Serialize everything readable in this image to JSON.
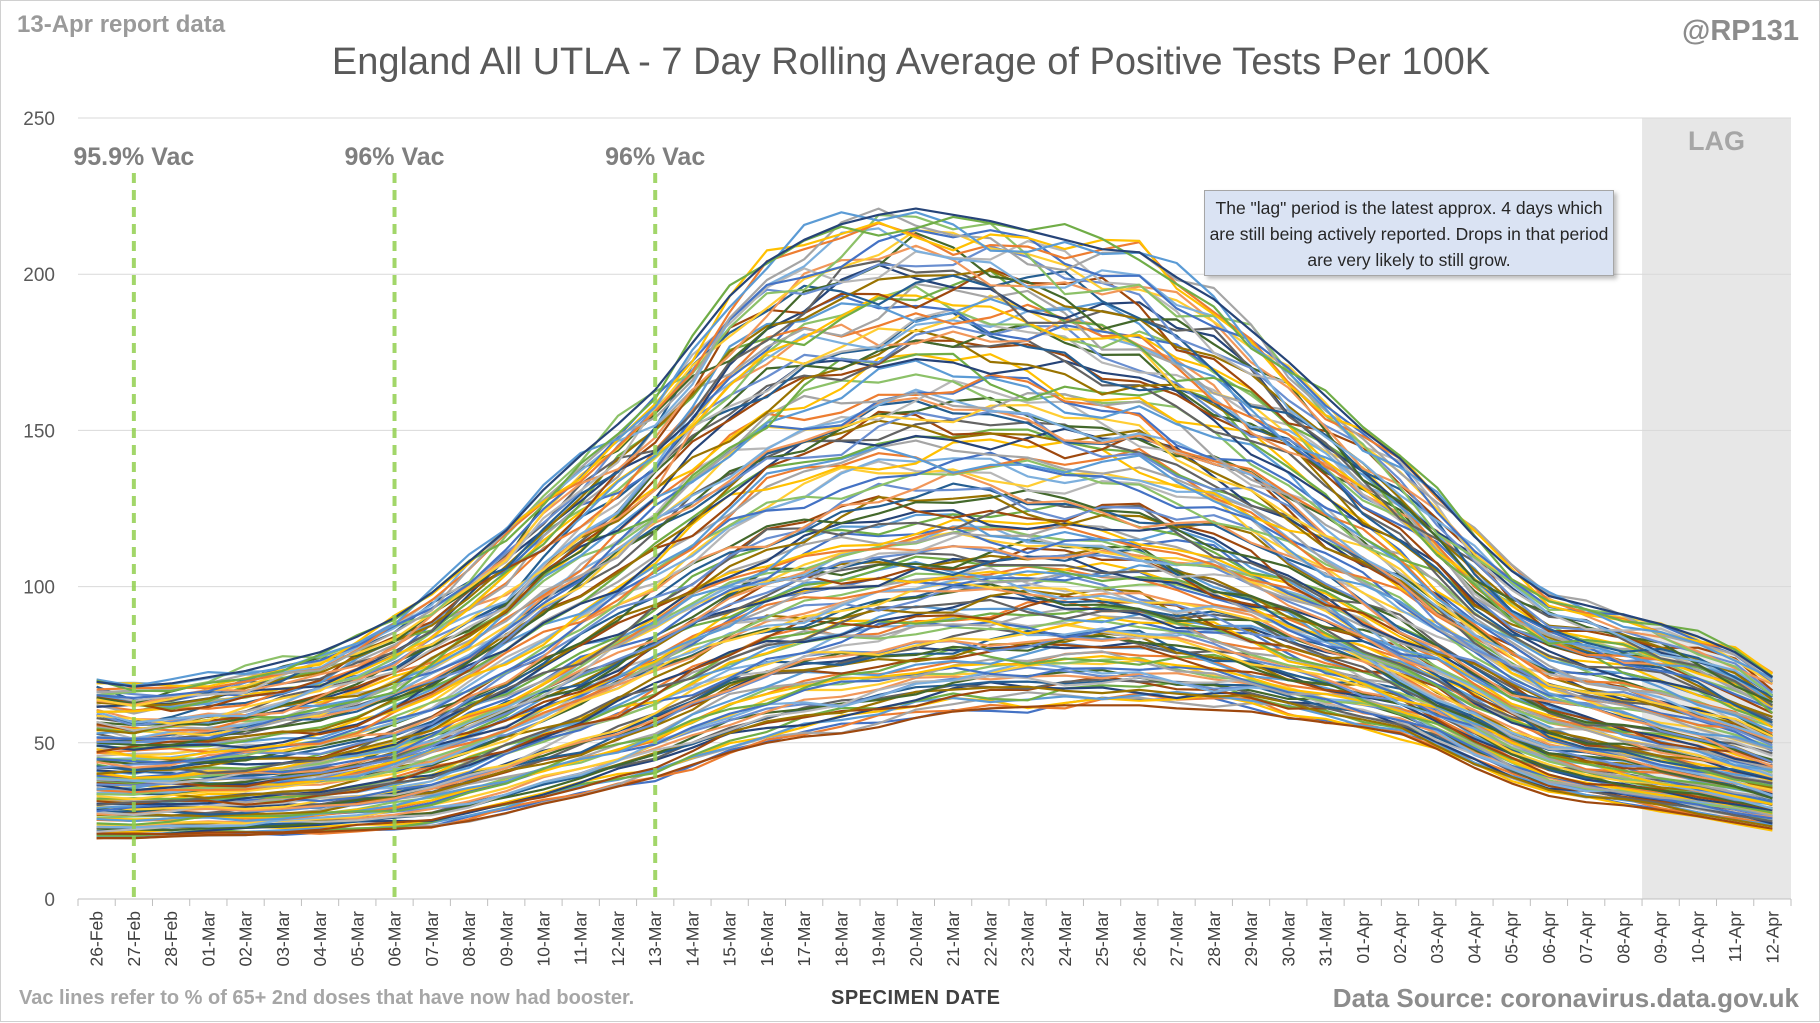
{
  "report_date": "13-Apr report data",
  "handle": "@RP131",
  "footnote": "Vac lines refer to % of 65+ 2nd doses that have now had booster.",
  "source": "Data Source: coronavirus.data.gov.uk",
  "callout": "The \"lag\" period is the latest approx. 4 days which are still being actively reported. Drops in that period are very likely to still grow.",
  "colors": {
    "grid": "#d9d9d9",
    "vac_line": "#92d050",
    "lag_shade": "#e7e7e7",
    "palette": [
      "#4472c4",
      "#ed7d31",
      "#a5a5a5",
      "#ffc000",
      "#5b9bd5",
      "#70ad47",
      "#264478",
      "#9e480e",
      "#636363",
      "#997300",
      "#255e91",
      "#43682b",
      "#698ed0",
      "#f1975a",
      "#b7b7b7",
      "#ffcd33",
      "#7cafdd",
      "#8cc168"
    ]
  },
  "chart_data": {
    "type": "line",
    "title": "England All UTLA - 7 Day Rolling Average of Positive Tests Per 100K",
    "xlabel": "SPECIMEN DATE",
    "ylabel": "",
    "ylim": [
      0,
      250
    ],
    "yticks": [
      0,
      50,
      100,
      150,
      200,
      250
    ],
    "grid": true,
    "legend": "none",
    "x": [
      "26-Feb",
      "27-Feb",
      "28-Feb",
      "01-Mar",
      "02-Mar",
      "03-Mar",
      "04-Mar",
      "05-Mar",
      "06-Mar",
      "07-Mar",
      "08-Mar",
      "09-Mar",
      "10-Mar",
      "11-Mar",
      "12-Mar",
      "13-Mar",
      "14-Mar",
      "15-Mar",
      "16-Mar",
      "17-Mar",
      "18-Mar",
      "19-Mar",
      "20-Mar",
      "21-Mar",
      "22-Mar",
      "23-Mar",
      "24-Mar",
      "25-Mar",
      "26-Mar",
      "27-Mar",
      "28-Mar",
      "29-Mar",
      "30-Mar",
      "31-Mar",
      "01-Apr",
      "02-Apr",
      "03-Apr",
      "04-Apr",
      "05-Apr",
      "06-Apr",
      "07-Apr",
      "08-Apr",
      "09-Apr",
      "10-Apr",
      "11-Apr",
      "12-Apr"
    ],
    "vac_markers": [
      {
        "date": "27-Feb",
        "label": "95.9% Vac"
      },
      {
        "date": "06-Mar",
        "label": "96% Vac"
      },
      {
        "date": "13-Mar",
        "label": "96% Vac"
      }
    ],
    "lag": {
      "from": "09-Apr",
      "to": "12-Apr",
      "label": "LAG"
    },
    "series_count": 150,
    "envelope": {
      "max": [
        69.5,
        68.0,
        69.0,
        71.0,
        73.0,
        76.0,
        79.0,
        84.0,
        90.0,
        98.0,
        108.0,
        118.0,
        131.0,
        142.0,
        152.0,
        163.0,
        178.0,
        193.0,
        204.0,
        211.0,
        216.0,
        219.0,
        221.0,
        219.0,
        217.0,
        214.0,
        211.0,
        208.0,
        207.0,
        199.0,
        192.0,
        182.0,
        172.0,
        161.0,
        150.0,
        141.0,
        129.0,
        116.0,
        105.0,
        97.0,
        94.0,
        91.0,
        88.0,
        84.0,
        79.0,
        71.0
      ],
      "mid": [
        41.0,
        40.5,
        41.0,
        41.5,
        42.0,
        43.0,
        44.5,
        47.0,
        50.5,
        55.0,
        60.0,
        65.0,
        71.0,
        77.0,
        83.0,
        90.0,
        97.0,
        103.0,
        108.0,
        111.5,
        114.0,
        116.0,
        117.5,
        118.5,
        118.5,
        118.0,
        117.5,
        116.5,
        115.0,
        112.0,
        108.5,
        104.0,
        99.0,
        93.5,
        88.0,
        82.0,
        76.0,
        69.5,
        63.0,
        58.0,
        55.0,
        52.5,
        50.0,
        47.5,
        44.5,
        41.5
      ],
      "min": [
        19.5,
        19.5,
        20.0,
        20.5,
        20.5,
        21.0,
        21.5,
        22.0,
        22.5,
        23.0,
        25.0,
        27.5,
        30.5,
        33.0,
        36.0,
        39.0,
        43.0,
        47.0,
        50.0,
        52.0,
        53.0,
        55.0,
        58.0,
        60.0,
        61.0,
        61.5,
        62.0,
        62.0,
        62.0,
        61.0,
        60.5,
        60.0,
        58.0,
        56.5,
        55.0,
        53.0,
        48.0,
        42.0,
        37.0,
        33.0,
        31.0,
        30.0,
        28.5,
        26.5,
        24.5,
        22.5
      ]
    }
  }
}
